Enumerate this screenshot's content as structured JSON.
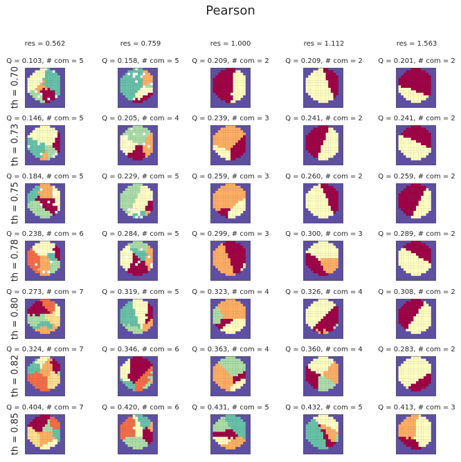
{
  "figure": {
    "title": "Pearson"
  },
  "chart_data": {
    "type": "heatmap",
    "title": "Pearson",
    "columns": [
      "res = 0.562",
      "res = 0.759",
      "res = 1.000",
      "res = 1.112",
      "res = 1.563"
    ],
    "rows": [
      "th = 0.70",
      "th = 0.73",
      "th = 0.75",
      "th = 0.78",
      "th = 0.80",
      "th = 0.82",
      "th = 0.85"
    ],
    "subtitles": [
      [
        "Q = 0.103,  # com = 5",
        "Q = 0.158,  # com = 5",
        "Q = 0.209,  # com = 2",
        "Q = 0.209,  # com = 2",
        "Q = 0.201,  # com = 2"
      ],
      [
        "Q = 0.146,  # com = 5",
        "Q = 0.205,  # com = 4",
        "Q = 0.239,  # com = 3",
        "Q = 0.241,  # com = 2",
        "Q = 0.241,  # com = 2"
      ],
      [
        "Q = 0.184,  # com = 5",
        "Q = 0.229,  # com = 5",
        "Q = 0.259,  # com = 3",
        "Q = 0.260,  # com = 2",
        "Q = 0.259,  # com = 2"
      ],
      [
        "Q = 0.238,  # com = 6",
        "Q = 0.284,  # com = 5",
        "Q = 0.299,  # com = 3",
        "Q = 0.300,  # com = 3",
        "Q = 0.289,  # com = 2"
      ],
      [
        "Q = 0.273,  # com = 7",
        "Q = 0.319,  # com = 5",
        "Q = 0.323,  # com = 4",
        "Q = 0.326,  # com = 4",
        "Q = 0.308,  # com = 2"
      ],
      [
        "Q = 0.324,  # com = 7",
        "Q = 0.346,  # com = 6",
        "Q = 0.363,  # com = 4",
        "Q = 0.360,  # com = 4",
        "Q = 0.283,  # com = 2"
      ],
      [
        "Q = 0.404,  # com = 7",
        "Q = 0.420,  # com = 6",
        "Q = 0.431,  # com = 5",
        "Q = 0.432,  # com = 5",
        "Q = 0.413,  # com = 3"
      ]
    ],
    "n_com": [
      [
        5,
        5,
        2,
        2,
        2
      ],
      [
        5,
        4,
        3,
        2,
        2
      ],
      [
        5,
        5,
        3,
        2,
        2
      ],
      [
        6,
        5,
        3,
        3,
        2
      ],
      [
        7,
        5,
        4,
        4,
        2
      ],
      [
        7,
        6,
        4,
        4,
        2
      ],
      [
        7,
        6,
        5,
        5,
        3
      ]
    ],
    "background_color": "#5e4fa2",
    "palette": [
      "#9e0142",
      "#ffffbf",
      "#fdae61",
      "#abdda4",
      "#66c2a5",
      "#f46d43",
      "#fee08b",
      "#3288bd"
    ],
    "grid": false
  }
}
